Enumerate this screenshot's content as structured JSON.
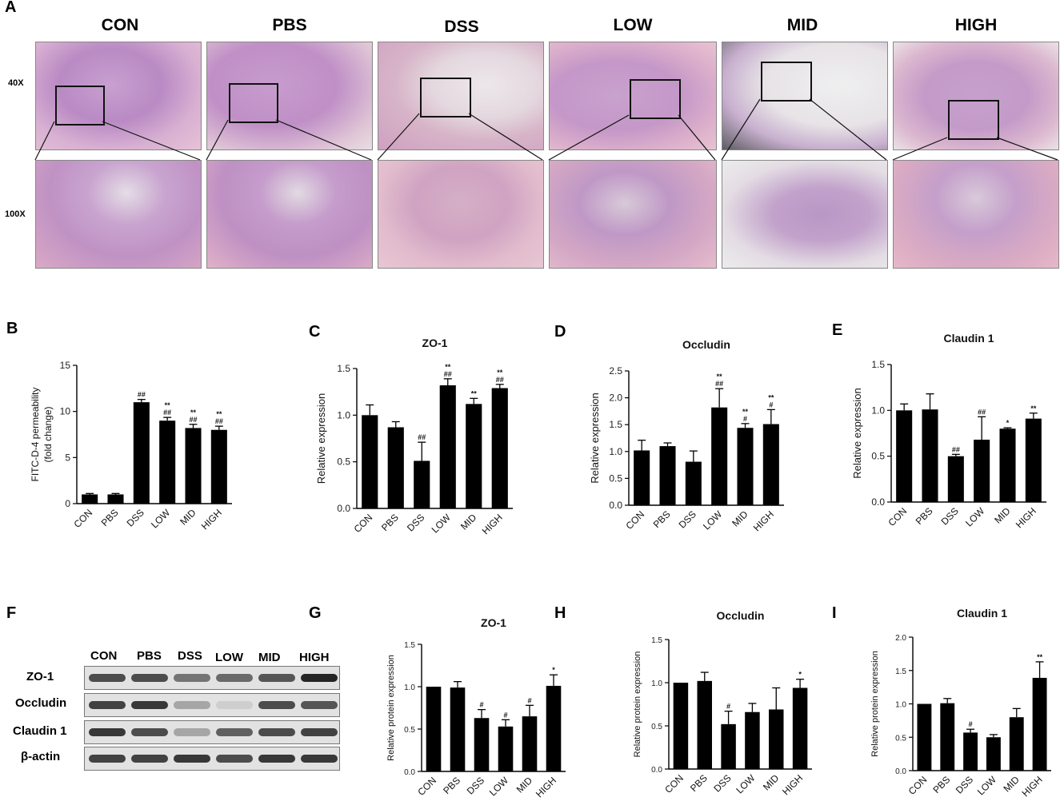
{
  "panels": {
    "A": "A",
    "B": "B",
    "C": "C",
    "D": "D",
    "E": "E",
    "F": "F",
    "G": "G",
    "H": "H",
    "I": "I"
  },
  "histology": {
    "groups": [
      "CON",
      "PBS",
      "DSS",
      "LOW",
      "MID",
      "HIGH"
    ],
    "mag_low": "40X",
    "mag_high": "100X"
  },
  "blot": {
    "columns": [
      "CON",
      "PBS",
      "DSS",
      "LOW",
      "MID",
      "HIGH"
    ],
    "rows": [
      {
        "label": "ZO-1",
        "intensity": [
          0.75,
          0.75,
          0.55,
          0.6,
          0.7,
          0.95
        ]
      },
      {
        "label": "Occludin",
        "intensity": [
          0.8,
          0.85,
          0.3,
          0.1,
          0.75,
          0.7
        ]
      },
      {
        "label": "Claudin 1",
        "intensity": [
          0.85,
          0.75,
          0.3,
          0.65,
          0.75,
          0.8
        ]
      },
      {
        "label": "β-actin",
        "intensity": [
          0.8,
          0.8,
          0.85,
          0.75,
          0.85,
          0.85
        ]
      }
    ]
  },
  "colors": {
    "bar": "#000000",
    "axis": "#000000",
    "blot_bg": "#e2e2e2",
    "band": "#1a1a1a"
  },
  "chart_data": [
    {
      "panel": "B",
      "type": "bar",
      "title": "",
      "xlabel": "",
      "ylabel": "FITC-D-4 permeability\n(fold change)",
      "categories": [
        "CON",
        "PBS",
        "DSS",
        "LOW",
        "MID",
        "HIGH"
      ],
      "values": [
        1.0,
        1.0,
        11.0,
        9.0,
        8.2,
        8.0
      ],
      "errors": [
        0.1,
        0.1,
        0.3,
        0.35,
        0.4,
        0.4
      ],
      "annotations": [
        "",
        "",
        "##",
        "**\n##",
        "**\n##",
        "**\n##"
      ],
      "ylim": [
        0,
        15
      ],
      "yticks": [
        0,
        5,
        10,
        15
      ]
    },
    {
      "panel": "C",
      "type": "bar",
      "title": "ZO-1",
      "xlabel": "",
      "ylabel": "Relative  expression",
      "categories": [
        "CON",
        "PBS",
        "DSS",
        "LOW",
        "MID",
        "HIGH"
      ],
      "values": [
        1.0,
        0.87,
        0.51,
        1.32,
        1.12,
        1.29
      ],
      "errors": [
        0.11,
        0.06,
        0.2,
        0.07,
        0.06,
        0.04
      ],
      "annotations": [
        "",
        "",
        "##",
        "**\n##",
        "**",
        "**\n##"
      ],
      "ylim": [
        0,
        1.5
      ],
      "yticks": [
        0.0,
        0.5,
        1.0,
        1.5
      ]
    },
    {
      "panel": "D",
      "type": "bar",
      "title": "Occludin",
      "xlabel": "",
      "ylabel": "Relative  expression",
      "categories": [
        "CON",
        "PBS",
        "DSS",
        "LOW",
        "MID",
        "HIGH"
      ],
      "values": [
        1.02,
        1.1,
        0.81,
        1.82,
        1.44,
        1.51
      ],
      "errors": [
        0.19,
        0.06,
        0.2,
        0.35,
        0.08,
        0.27
      ],
      "annotations": [
        "",
        "",
        "",
        "**\n##",
        "**\n#",
        "**\n#"
      ],
      "ylim": [
        0,
        2.5
      ],
      "yticks": [
        0.0,
        0.5,
        1.0,
        1.5,
        2.0,
        2.5
      ]
    },
    {
      "panel": "E",
      "type": "bar",
      "title": "Claudin 1",
      "xlabel": "",
      "ylabel": "Relative  expression",
      "categories": [
        "CON",
        "PBS",
        "DSS",
        "LOW",
        "MID",
        "HIGH"
      ],
      "values": [
        1.0,
        1.01,
        0.5,
        0.68,
        0.8,
        0.91
      ],
      "errors": [
        0.07,
        0.17,
        0.02,
        0.25,
        0.01,
        0.06
      ],
      "annotations": [
        "",
        "",
        "##",
        "##",
        "*",
        "**"
      ],
      "ylim": [
        0,
        1.5
      ],
      "yticks": [
        0.0,
        0.5,
        1.0,
        1.5
      ]
    },
    {
      "panel": "G",
      "type": "bar",
      "title": "ZO-1",
      "xlabel": "",
      "ylabel": "Relative protein expression",
      "categories": [
        "CON",
        "PBS",
        "DSS",
        "LOW",
        "MID",
        "HIGH"
      ],
      "values": [
        1.0,
        0.99,
        0.63,
        0.53,
        0.65,
        1.01
      ],
      "errors": [
        0.0,
        0.07,
        0.1,
        0.08,
        0.13,
        0.13
      ],
      "annotations": [
        "",
        "",
        "#",
        "#",
        "#",
        "*"
      ],
      "ylim": [
        0,
        1.5
      ],
      "yticks": [
        0.0,
        0.5,
        1.0,
        1.5
      ]
    },
    {
      "panel": "H",
      "type": "bar",
      "title": "Occludin",
      "xlabel": "",
      "ylabel": "Relative protein expression",
      "categories": [
        "CON",
        "PBS",
        "DSS",
        "LOW",
        "MID",
        "HIGH"
      ],
      "values": [
        1.0,
        1.02,
        0.52,
        0.66,
        0.69,
        0.94
      ],
      "errors": [
        0.0,
        0.1,
        0.15,
        0.1,
        0.25,
        0.1
      ],
      "annotations": [
        "",
        "",
        "#",
        "",
        "",
        "*"
      ],
      "ylim": [
        0,
        1.5
      ],
      "yticks": [
        0.0,
        0.5,
        1.0,
        1.5
      ]
    },
    {
      "panel": "I",
      "type": "bar",
      "title": "Claudin 1",
      "xlabel": "",
      "ylabel": "Relative protein expression",
      "categories": [
        "CON",
        "PBS",
        "DSS",
        "LOW",
        "MID",
        "HIGH"
      ],
      "values": [
        1.0,
        1.01,
        0.57,
        0.5,
        0.8,
        1.39
      ],
      "errors": [
        0.0,
        0.07,
        0.05,
        0.04,
        0.13,
        0.24
      ],
      "annotations": [
        "",
        "",
        "#",
        "",
        "",
        "**"
      ],
      "ylim": [
        0,
        2.0
      ],
      "yticks": [
        0.0,
        0.5,
        1.0,
        1.5,
        2.0
      ]
    }
  ]
}
